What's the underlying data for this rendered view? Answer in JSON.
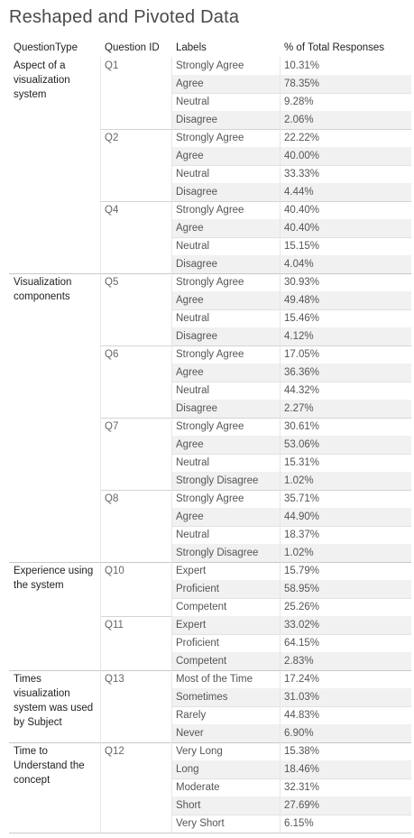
{
  "title": "Reshaped and Pivoted Data",
  "columns": {
    "question_type": "QuestionType",
    "question_id": "Question ID",
    "labels": "Labels",
    "pct": "% of Total Responses"
  },
  "colors": {
    "shade": "#f1f1f1",
    "title": "#4a4a4a"
  },
  "chart_data": {
    "type": "table",
    "groups": [
      {
        "type": "Aspect of a visualization system",
        "questions": [
          {
            "id": "Q1",
            "rows": [
              [
                "Strongly Agree",
                "10.31%"
              ],
              [
                "Agree",
                "78.35%"
              ],
              [
                "Neutral",
                "9.28%"
              ],
              [
                "Disagree",
                "2.06%"
              ]
            ]
          },
          {
            "id": "Q2",
            "rows": [
              [
                "Strongly Agree",
                "22.22%"
              ],
              [
                "Agree",
                "40.00%"
              ],
              [
                "Neutral",
                "33.33%"
              ],
              [
                "Disagree",
                "4.44%"
              ]
            ]
          },
          {
            "id": "Q4",
            "rows": [
              [
                "Strongly Agree",
                "40.40%"
              ],
              [
                "Agree",
                "40.40%"
              ],
              [
                "Neutral",
                "15.15%"
              ],
              [
                "Disagree",
                "4.04%"
              ]
            ]
          }
        ]
      },
      {
        "type": "Visualization components",
        "questions": [
          {
            "id": "Q5",
            "rows": [
              [
                "Strongly Agree",
                "30.93%"
              ],
              [
                "Agree",
                "49.48%"
              ],
              [
                "Neutral",
                "15.46%"
              ],
              [
                "Disagree",
                "4.12%"
              ]
            ]
          },
          {
            "id": "Q6",
            "rows": [
              [
                "Strongly Agree",
                "17.05%"
              ],
              [
                "Agree",
                "36.36%"
              ],
              [
                "Neutral",
                "44.32%"
              ],
              [
                "Disagree",
                "2.27%"
              ]
            ]
          },
          {
            "id": "Q7",
            "rows": [
              [
                "Strongly Agree",
                "30.61%"
              ],
              [
                "Agree",
                "53.06%"
              ],
              [
                "Neutral",
                "15.31%"
              ],
              [
                "Strongly Disagree",
                "1.02%"
              ]
            ]
          },
          {
            "id": "Q8",
            "rows": [
              [
                "Strongly Agree",
                "35.71%"
              ],
              [
                "Agree",
                "44.90%"
              ],
              [
                "Neutral",
                "18.37%"
              ],
              [
                "Strongly Disagree",
                "1.02%"
              ]
            ]
          }
        ]
      },
      {
        "type": "Experience using the system",
        "questions": [
          {
            "id": "Q10",
            "rows": [
              [
                "Expert",
                "15.79%"
              ],
              [
                "Proficient",
                "58.95%"
              ],
              [
                "Competent",
                "25.26%"
              ]
            ]
          },
          {
            "id": "Q11",
            "rows": [
              [
                "Expert",
                "33.02%"
              ],
              [
                "Proficient",
                "64.15%"
              ],
              [
                "Competent",
                "2.83%"
              ]
            ]
          }
        ]
      },
      {
        "type": "Times visualization system was used by Subject",
        "questions": [
          {
            "id": "Q13",
            "rows": [
              [
                "Most of the Time",
                "17.24%"
              ],
              [
                "Sometimes",
                "31.03%"
              ],
              [
                "Rarely",
                "44.83%"
              ],
              [
                "Never",
                "6.90%"
              ]
            ]
          }
        ]
      },
      {
        "type": "Time to Understand the concept",
        "questions": [
          {
            "id": "Q12",
            "rows": [
              [
                "Very Long",
                "15.38%"
              ],
              [
                "Long",
                "18.46%"
              ],
              [
                "Moderate",
                "32.31%"
              ],
              [
                "Short",
                "27.69%"
              ],
              [
                "Very Short",
                "6.15%"
              ]
            ]
          }
        ]
      }
    ]
  }
}
